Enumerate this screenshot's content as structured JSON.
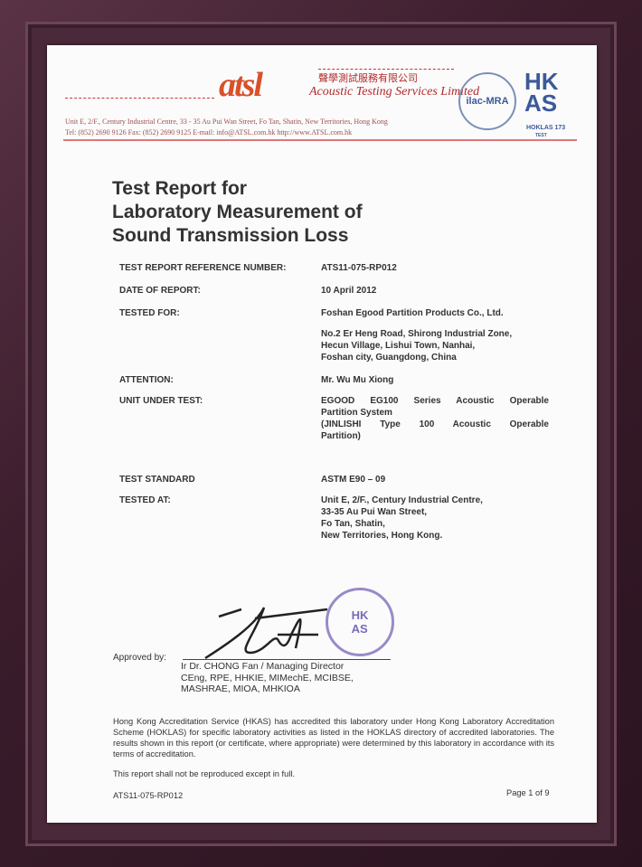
{
  "letterhead": {
    "logo": "atsl",
    "company_cn": "聲學測試服務有限公司",
    "company_en": "Acoustic Testing Services Limited",
    "address": "Unit E, 2/F., Century Industrial Centre, 33 - 35 Au Pui Wan Street, Fo Tan, Shatin, New Territories, Hong Kong",
    "contact": "Tel: (852) 2690 9126     Fax: (852) 2690 9125     E-mail: info@ATSL.com.hk     http://www.ATSL.com.hk",
    "ilac_logo": "ilac-MRA",
    "hkas_logo": "HKAS",
    "hoklas": "HOKLAS 173",
    "hoklas_sub": "TEST",
    "accent_color": "#c0392b"
  },
  "title": [
    "Test Report for",
    "Laboratory Measurement of",
    "Sound Transmission Loss"
  ],
  "fields": {
    "ref_label": "TEST REPORT REFERENCE NUMBER:",
    "ref_value": "ATS11-075-RP012",
    "date_label": "DATE OF REPORT:",
    "date_value": "10 April 2012",
    "tested_for_label": "TESTED FOR:",
    "tested_for_value": "Foshan Egood Partition Products Co., Ltd.",
    "tested_for_addr": [
      "No.2 Er Heng Road, Shirong Industrial Zone,",
      "Hecun Village, Lishui Town, Nanhai,",
      "Foshan city, Guangdong, China"
    ],
    "attention_label": "ATTENTION:",
    "attention_value": "Mr. Wu Mu Xiong",
    "unit_label": "UNIT UNDER TEST:",
    "unit_value": [
      "EGOOD EG100 Series Acoustic Operable",
      "Partition System",
      "(JINLISHI Type 100 Acoustic Operable",
      "Partition)"
    ],
    "standard_label": "TEST STANDARD",
    "standard_value": "ASTM E90 – 09",
    "tested_at_label": "TESTED AT:",
    "tested_at_value": [
      "Unit E, 2/F., Century Industrial Centre,",
      "33-35 Au Pui Wan Street,",
      "Fo Tan, Shatin,",
      "New Territories, Hong Kong."
    ]
  },
  "approval": {
    "label": "Approved by:",
    "signature": "signature",
    "stamp": "Acoustic Testing Services Limited",
    "name": "Ir Dr. CHONG Fan / Managing Director",
    "quals": [
      "CEng, RPE, HHKIE, MIMechE, MCIBSE,",
      "MASHRAE, MIOA, MHKIOA"
    ]
  },
  "accreditation": "Hong Kong Accreditation Service (HKAS) has accredited this laboratory under Hong Kong Laboratory Accreditation Scheme (HOKLAS) for specific laboratory activities as listed in the HOKLAS directory of accredited laboratories. The results shown in this report (or certificate, where appropriate) were determined by this laboratory in accordance with its terms of accreditation.",
  "reproduction_note": "This report shall not be reproduced except in full.",
  "footer": {
    "ref": "ATS11-075-RP012",
    "page": "Page 1 of 9"
  }
}
